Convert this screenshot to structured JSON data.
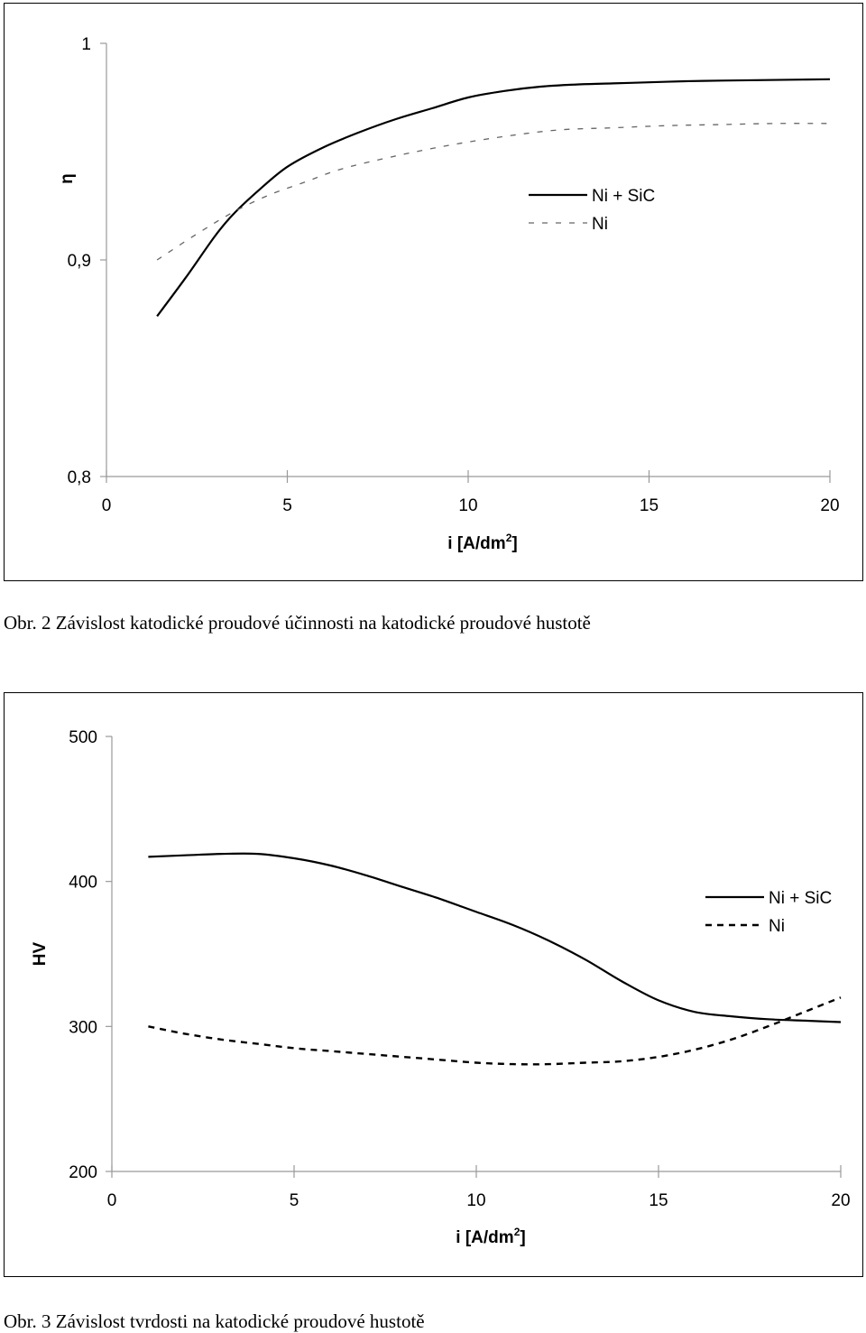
{
  "chart_data": [
    {
      "type": "line",
      "title": "",
      "xlabel": "i [A/dm",
      "xlabel_sup": "2",
      "xlabel_end": "]",
      "ylabel": "η",
      "xlim": [
        0,
        20
      ],
      "ylim": [
        0.8,
        1.0
      ],
      "x_ticks": [
        0,
        5,
        10,
        15,
        20
      ],
      "x_tick_labels": [
        "0",
        "5",
        "10",
        "15",
        "20"
      ],
      "y_ticks": [
        0.8,
        0.9,
        1.0
      ],
      "y_tick_labels": [
        "0,8",
        "0,9",
        "1"
      ],
      "grid": false,
      "legend_position": "right",
      "series": [
        {
          "name": "Ni + SiC",
          "style": "solid",
          "color": "#000000",
          "x": [
            1.4,
            2.2,
            3.0,
            3.5,
            4.2,
            5.0,
            6.0,
            7.0,
            8.0,
            9.0,
            10.0,
            11.0,
            12.0,
            13.0,
            14.0,
            15.0,
            16.0,
            17.0,
            18.0,
            19.0,
            20.0
          ],
          "y": [
            0.874,
            0.892,
            0.911,
            0.921,
            0.932,
            0.943,
            0.952,
            0.959,
            0.965,
            0.97,
            0.975,
            0.978,
            0.98,
            0.981,
            0.9815,
            0.982,
            0.9825,
            0.9828,
            0.983,
            0.9832,
            0.9834
          ]
        },
        {
          "name": "Ni",
          "style": "dashed",
          "color": "#666666",
          "x": [
            1.4,
            2.5,
            3.5,
            4.5,
            5.5,
            6.5,
            8.0,
            9.5,
            11.0,
            12.5,
            14.0,
            15.5,
            17.0,
            18.5,
            20.0
          ],
          "y": [
            0.9,
            0.912,
            0.922,
            0.93,
            0.936,
            0.942,
            0.948,
            0.953,
            0.957,
            0.96,
            0.961,
            0.962,
            0.9625,
            0.963,
            0.963
          ]
        }
      ]
    },
    {
      "type": "line",
      "title": "",
      "xlabel": "i [A/dm",
      "xlabel_sup": "2",
      "xlabel_end": "]",
      "ylabel": "HV",
      "xlim": [
        0,
        20
      ],
      "ylim": [
        200,
        500
      ],
      "x_ticks": [
        0,
        5,
        10,
        15,
        20
      ],
      "x_tick_labels": [
        "0",
        "5",
        "10",
        "15",
        "20"
      ],
      "y_ticks": [
        200,
        300,
        400,
        500
      ],
      "y_tick_labels": [
        "200",
        "300",
        "400",
        "500"
      ],
      "grid": false,
      "legend_position": "right",
      "series": [
        {
          "name": "Ni + SiC",
          "style": "solid",
          "color": "#000000",
          "x": [
            1,
            2,
            3,
            4,
            5,
            6,
            7,
            8,
            9,
            10,
            11,
            12,
            13,
            14,
            15,
            16,
            17,
            18,
            19,
            20
          ],
          "y": [
            417,
            418,
            419,
            419,
            416,
            411,
            404,
            396,
            388,
            379,
            370,
            359,
            346,
            331,
            318,
            310,
            307,
            305,
            304,
            303
          ]
        },
        {
          "name": "Ni",
          "style": "dashed",
          "color": "#000000",
          "x": [
            1,
            2,
            3,
            4,
            5,
            6,
            7,
            8,
            9,
            10,
            11,
            12,
            13,
            14,
            15,
            16,
            17,
            18,
            19,
            20
          ],
          "y": [
            300,
            295,
            291,
            288,
            285,
            283,
            281,
            279,
            277,
            275,
            274,
            274,
            275,
            276,
            279,
            284,
            291,
            300,
            310,
            320
          ]
        }
      ]
    }
  ],
  "captions": {
    "fig2": "Obr. 2 Závislost katodické proudové účinnosti na katodické proudové hustotě",
    "fig3": "Obr. 3 Závislost tvrdosti na katodické proudové hustotě"
  },
  "colors": {
    "axis": "#999999",
    "line": "#000000",
    "frame": "#000000",
    "background": "#ffffff"
  }
}
